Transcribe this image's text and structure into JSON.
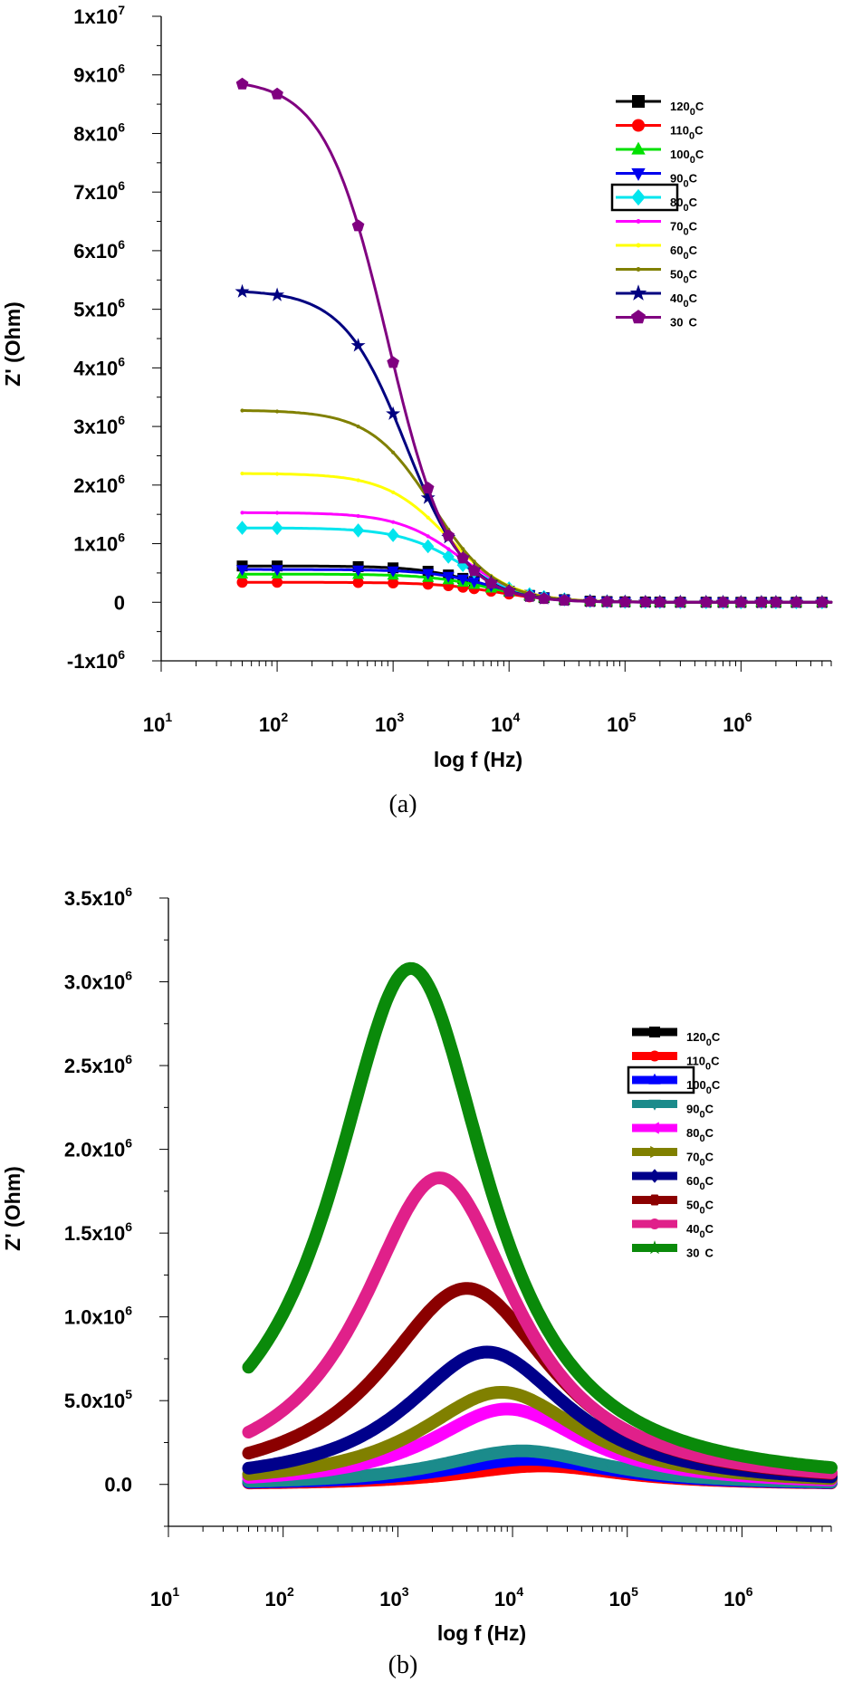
{
  "chart_data": [
    {
      "id": "a",
      "type": "line",
      "caption": "(a)",
      "xlabel": "log f (Hz)",
      "ylabel": "Z' (Ohm)",
      "x_scale": "log",
      "xlim": [
        10,
        6000000
      ],
      "ylim": [
        -1000000,
        10000000
      ],
      "x_ticks": [
        {
          "base": "10",
          "exp": "1",
          "value": 10
        },
        {
          "base": "10",
          "exp": "2",
          "value": 100
        },
        {
          "base": "10",
          "exp": "3",
          "value": 1000
        },
        {
          "base": "10",
          "exp": "4",
          "value": 10000
        },
        {
          "base": "10",
          "exp": "5",
          "value": 100000
        },
        {
          "base": "10",
          "exp": "6",
          "value": 1000000
        }
      ],
      "y_ticks": [
        {
          "base": "1x10",
          "exp": "7",
          "value": 10000000
        },
        {
          "base": "9x10",
          "exp": "6",
          "value": 9000000
        },
        {
          "base": "8x10",
          "exp": "6",
          "value": 8000000
        },
        {
          "base": "7x10",
          "exp": "6",
          "value": 7000000
        },
        {
          "base": "6x10",
          "exp": "6",
          "value": 6000000
        },
        {
          "base": "5x10",
          "exp": "6",
          "value": 5000000
        },
        {
          "base": "4x10",
          "exp": "6",
          "value": 4000000
        },
        {
          "base": "3x10",
          "exp": "6",
          "value": 3000000
        },
        {
          "base": "2x10",
          "exp": "6",
          "value": 2000000
        },
        {
          "base": "1x10",
          "exp": "6",
          "value": 1000000
        },
        {
          "base": "0",
          "exp": "",
          "value": 0
        },
        {
          "base": "-1x10",
          "exp": "6",
          "value": -1000000
        }
      ],
      "legend_position": "top-right",
      "series": [
        {
          "name": "120",
          "color": "#000000",
          "marker": "square",
          "type": "step",
          "low": 620000,
          "fc": 6000
        },
        {
          "name": "110",
          "color": "#ff0000",
          "marker": "circle",
          "type": "step",
          "low": 340000,
          "fc": 8000
        },
        {
          "name": "100",
          "color": "#00e000",
          "marker": "triangle-up",
          "type": "step",
          "low": 480000,
          "fc": 7000
        },
        {
          "name": "90",
          "color": "#0000ee",
          "marker": "triangle-down",
          "type": "step",
          "low": 560000,
          "fc": 7000
        },
        {
          "name": "80",
          "color": "#00e5ee",
          "marker": "diamond",
          "type": "step",
          "low": 1270000,
          "fc": 4000
        },
        {
          "name": "70",
          "color": "#ff00ff",
          "marker": "small",
          "type": "step",
          "low": 1530000,
          "fc": 3800
        },
        {
          "name": "60",
          "color": "#ffff00",
          "marker": "small",
          "type": "step",
          "low": 2200000,
          "fc": 3000
        },
        {
          "name": "50",
          "color": "#808000",
          "marker": "small",
          "type": "step",
          "low": 3280000,
          "fc": 2200
        },
        {
          "name": "40",
          "color": "#000080",
          "marker": "star",
          "type": "step",
          "low": 5330000,
          "fc": 1300
        },
        {
          "name": "30",
          "color": "#800080",
          "marker": "pentagon",
          "type": "step",
          "low": 8930000,
          "fc": 900
        }
      ],
      "legend_labels": [
        {
          "text": "120",
          "sup": "0",
          "suffix": "C"
        },
        {
          "text": "110",
          "sup": "0",
          "suffix": "C"
        },
        {
          "text": "100",
          "sup": "0",
          "suffix": "C"
        },
        {
          "text": "90",
          "sup": "0",
          "suffix": "C"
        },
        {
          "text": "80",
          "sup": "0",
          "suffix": "C"
        },
        {
          "text": "70",
          "sup": "0",
          "suffix": "C"
        },
        {
          "text": "60",
          "sup": "0",
          "suffix": "C"
        },
        {
          "text": "50",
          "sup": "0",
          "suffix": "C"
        },
        {
          "text": "40",
          "sup": "0",
          "suffix": "C"
        },
        {
          "text": "30",
          "sup": "",
          "suffix": "C"
        }
      ]
    },
    {
      "id": "b",
      "type": "line",
      "caption": "(b)",
      "xlabel": "log f (Hz)",
      "ylabel": "Z' (Ohm)",
      "x_scale": "log",
      "xlim": [
        10,
        6000000
      ],
      "ylim": [
        -250000,
        3500000
      ],
      "x_ticks": [
        {
          "base": "10",
          "exp": "1",
          "value": 10
        },
        {
          "base": "10",
          "exp": "2",
          "value": 100
        },
        {
          "base": "10",
          "exp": "3",
          "value": 1000
        },
        {
          "base": "10",
          "exp": "4",
          "value": 10000
        },
        {
          "base": "10",
          "exp": "5",
          "value": 100000
        },
        {
          "base": "10",
          "exp": "6",
          "value": 1000000
        }
      ],
      "y_ticks": [
        {
          "base": "3.5x10",
          "exp": "6",
          "value": 3500000
        },
        {
          "base": "3.0x10",
          "exp": "6",
          "value": 3000000
        },
        {
          "base": "2.5x10",
          "exp": "6",
          "value": 2500000
        },
        {
          "base": "2.0x10",
          "exp": "6",
          "value": 2000000
        },
        {
          "base": "1.5x10",
          "exp": "6",
          "value": 1500000
        },
        {
          "base": "1.0x10",
          "exp": "6",
          "value": 1000000
        },
        {
          "base": "5.0x10",
          "exp": "5",
          "value": 500000
        },
        {
          "base": "0.0",
          "exp": "",
          "value": 0
        }
      ],
      "legend_position": "right",
      "series": [
        {
          "name": "120",
          "color": "#000000",
          "marker": "square",
          "type": "peak",
          "base": 0,
          "peak": 160000,
          "fp": 15000,
          "w": 1.0
        },
        {
          "name": "110",
          "color": "#ff0000",
          "marker": "circle",
          "type": "peak",
          "base": 0,
          "peak": 110000,
          "fp": 18000,
          "w": 1.0
        },
        {
          "name": "100",
          "color": "#0000ff",
          "marker": "triangle-up",
          "type": "peak",
          "base": 0,
          "peak": 150000,
          "fp": 14000,
          "w": 1.0
        },
        {
          "name": "90",
          "color": "#1b8b8b",
          "marker": "triangle-down",
          "type": "peak",
          "base": 0,
          "peak": 200000,
          "fp": 12000,
          "w": 1.0
        },
        {
          "name": "80",
          "color": "#ff00ff",
          "marker": "triangle-left",
          "type": "peak",
          "base": 0,
          "peak": 450000,
          "fp": 9000,
          "w": 0.95
        },
        {
          "name": "70",
          "color": "#808000",
          "marker": "triangle-right",
          "type": "peak",
          "base": 0,
          "peak": 550000,
          "fp": 8000,
          "w": 1.0
        },
        {
          "name": "60",
          "color": "#00008b",
          "marker": "diamond",
          "type": "peak",
          "base": 0,
          "peak": 790000,
          "fp": 6000,
          "w": 1.0
        },
        {
          "name": "50",
          "color": "#8b0000",
          "marker": "hexagon",
          "type": "peak",
          "base": 0,
          "peak": 1170000,
          "fp": 4000,
          "w": 1.05
        },
        {
          "name": "40",
          "color": "#e0208a",
          "marker": "circle",
          "type": "peak",
          "base": 0,
          "peak": 1830000,
          "fp": 2300,
          "w": 0.95
        },
        {
          "name": "30",
          "color": "#0a8a0a",
          "marker": "star",
          "type": "peak",
          "base": 0,
          "peak": 3080000,
          "fp": 1300,
          "w": 0.95
        }
      ],
      "legend_labels": [
        {
          "text": "120",
          "sup": "0",
          "suffix": "C"
        },
        {
          "text": "110",
          "sup": "0",
          "suffix": "C"
        },
        {
          "text": "100",
          "sup": "0",
          "suffix": "C"
        },
        {
          "text": "90",
          "sup": "0",
          "suffix": "C"
        },
        {
          "text": "80",
          "sup": "0",
          "suffix": "C"
        },
        {
          "text": "70",
          "sup": "0",
          "suffix": "C"
        },
        {
          "text": "60",
          "sup": "0",
          "suffix": "C"
        },
        {
          "text": "50",
          "sup": "0",
          "suffix": "C"
        },
        {
          "text": "40",
          "sup": "0",
          "suffix": "C"
        },
        {
          "text": "30",
          "sup": "",
          "suffix": "C"
        }
      ]
    }
  ]
}
